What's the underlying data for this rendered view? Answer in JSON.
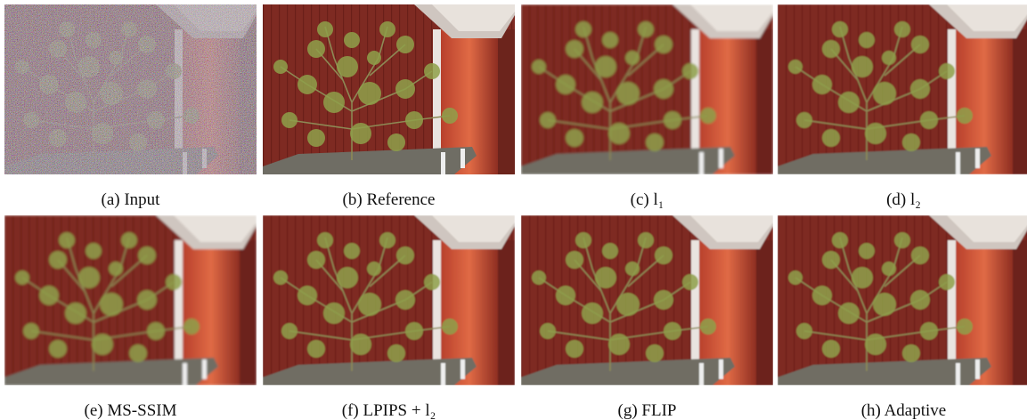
{
  "figure": {
    "panels": [
      {
        "caption": "(a) Input"
      },
      {
        "caption": "(b) Reference"
      },
      {
        "caption": "(c) l₁"
      },
      {
        "caption": "(d) l₂"
      },
      {
        "caption": "(e) MS-SSIM"
      },
      {
        "caption": "(f) LPIPS + l₂"
      },
      {
        "caption": "(g) FLIP"
      },
      {
        "caption": "(h) Adaptive"
      }
    ]
  }
}
